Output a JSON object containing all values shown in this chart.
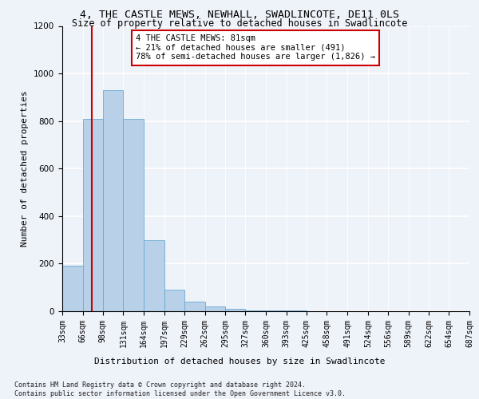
{
  "title1": "4, THE CASTLE MEWS, NEWHALL, SWADLINCOTE, DE11 0LS",
  "title2": "Size of property relative to detached houses in Swadlincote",
  "xlabel": "Distribution of detached houses by size in Swadlincote",
  "ylabel": "Number of detached properties",
  "bin_edges": [
    33,
    66,
    98,
    131,
    164,
    197,
    229,
    262,
    295,
    327,
    360,
    393,
    425,
    458,
    491,
    524,
    556,
    589,
    622,
    654,
    687
  ],
  "bar_heights": [
    190,
    810,
    930,
    810,
    300,
    90,
    40,
    20,
    10,
    5,
    3,
    2,
    1,
    1,
    0,
    0,
    0,
    0,
    0,
    0
  ],
  "bar_color": "#b8d0e8",
  "bar_edge_color": "#6aaad4",
  "property_size": 81,
  "red_line_color": "#cc0000",
  "annotation_text": "4 THE CASTLE MEWS: 81sqm\n← 21% of detached houses are smaller (491)\n78% of semi-detached houses are larger (1,826) →",
  "annotation_box_color": "#ffffff",
  "annotation_box_edge": "#cc0000",
  "ylim": [
    0,
    1200
  ],
  "yticks": [
    0,
    200,
    400,
    600,
    800,
    1000,
    1200
  ],
  "footnote": "Contains HM Land Registry data © Crown copyright and database right 2024.\nContains public sector information licensed under the Open Government Licence v3.0.",
  "bg_color": "#eef2f9",
  "grid_color": "#ffffff",
  "title_fontsize": 9.5,
  "subtitle_fontsize": 8.5,
  "axis_label_fontsize": 8,
  "tick_fontsize": 7.5,
  "annot_fontsize": 7.5,
  "xlabel_fontsize": 8,
  "footnote_fontsize": 6
}
